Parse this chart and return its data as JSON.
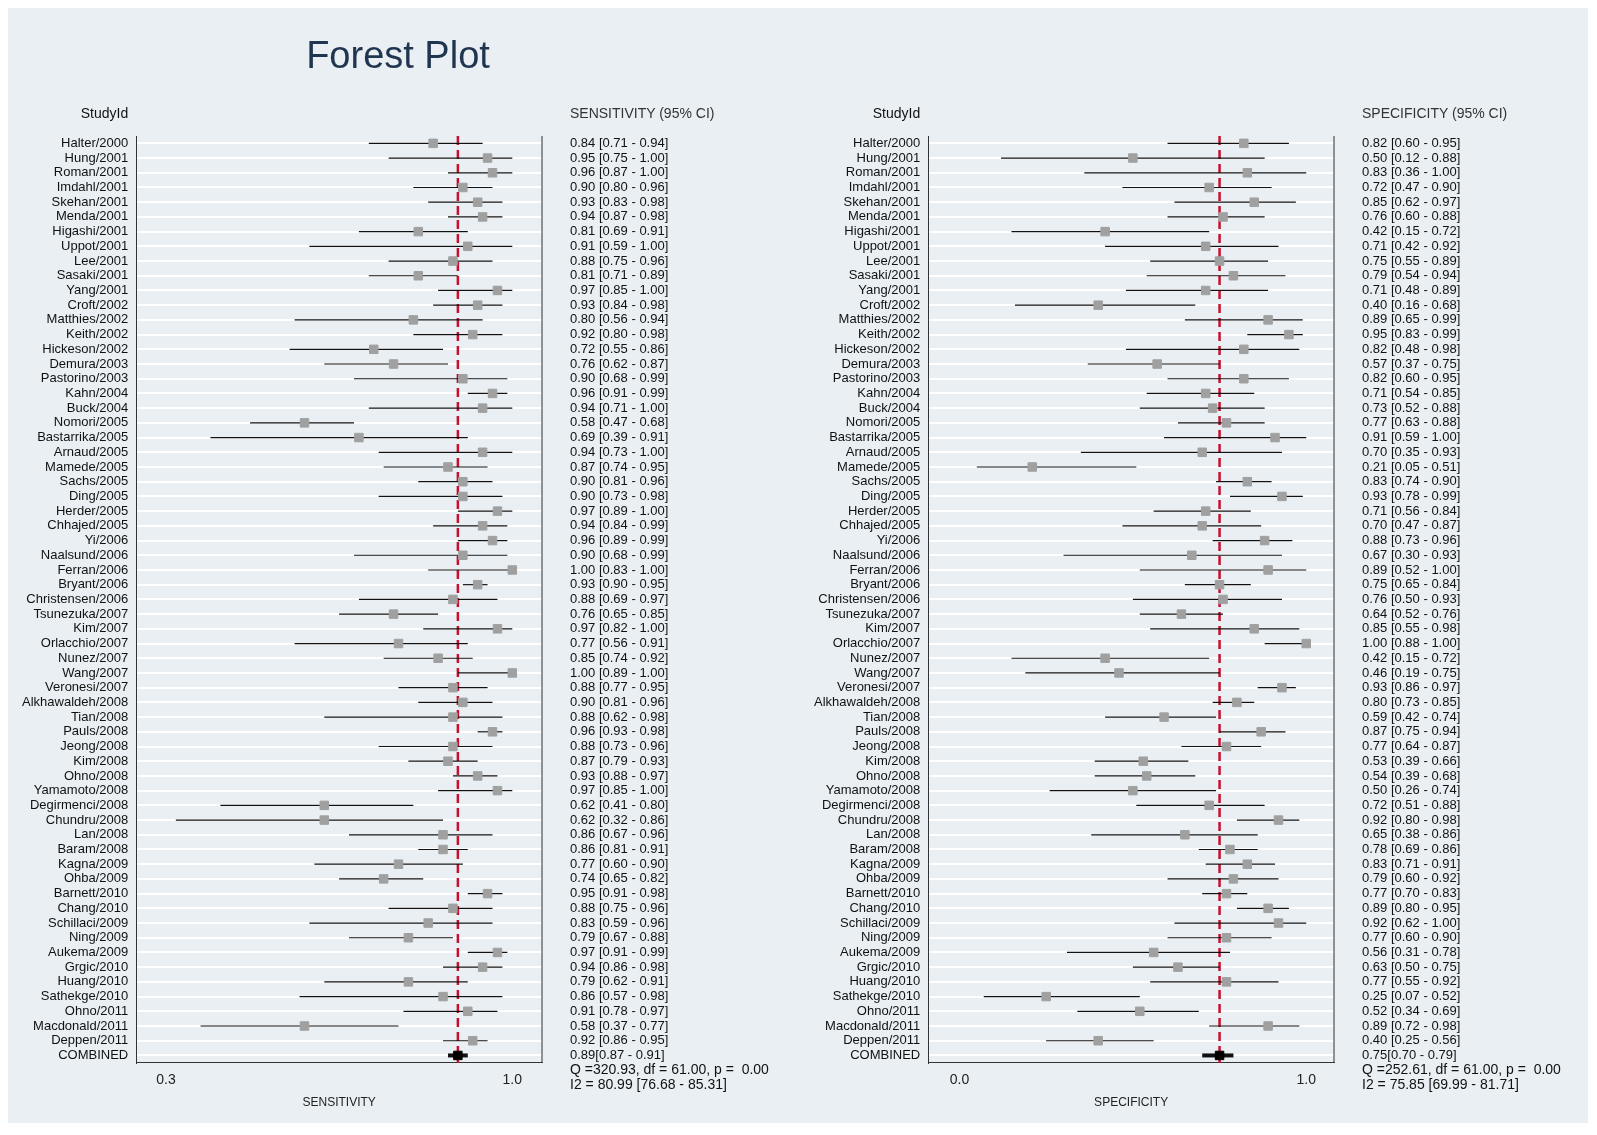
{
  "chart_data": [
    {
      "type": "scatter",
      "title": "Forest Plot",
      "orientation": "horizontal",
      "xlabel": "SENSITIVITY",
      "ylabel": "StudyId",
      "grid": "y",
      "marker": "square",
      "legend": false,
      "categories": [
        "Halter/2000",
        "Hung/2001",
        "Roman/2001",
        "Imdahl/2001",
        "Skehan/2001",
        "Menda/2001",
        "Higashi/2001",
        "Uppot/2001",
        "Lee/2001",
        "Sasaki/2001",
        "Yang/2001",
        "Croft/2002",
        "Matthies/2002",
        "Keith/2002",
        "Hickeson/2002",
        "Demura/2003",
        "Pastorino/2003",
        "Kahn/2004",
        "Buck/2004",
        "Nomori/2005",
        "Bastarrika/2005",
        "Arnaud/2005",
        "Mamede/2005",
        "Sachs/2005",
        "Ding/2005",
        "Herder/2005",
        "Chhajed/2005",
        "Yi/2006",
        "Naalsund/2006",
        "Ferran/2006",
        "Bryant/2006",
        "Christensen/2006",
        "Tsunezuka/2007",
        "Kim/2007",
        "Orlacchio/2007",
        "Nunez/2007",
        "Wang/2007",
        "Veronesi/2007",
        "Alkhawaldeh/2008",
        "Tian/2008",
        "Pauls/2008",
        "Jeong/2008",
        "Kim/2008",
        "Ohno/2008",
        "Yamamoto/2008",
        "Degirmenci/2008",
        "Chundru/2008",
        "Lan/2008",
        "Baram/2008",
        "Kagna/2009",
        "Ohba/2009",
        "Barnett/2010",
        "Chang/2010",
        "Schillaci/2009",
        "Ning/2009",
        "Aukema/2009",
        "Grgic/2010",
        "Huang/2010",
        "Sathekge/2010",
        "Ohno/2011",
        "Macdonald/2011",
        "Deppen/2011",
        "COMBINED"
      ],
      "xlim": [
        0.24,
        1.06
      ],
      "xticks": [
        {
          "value": 0.3,
          "label": "0.3"
        },
        {
          "value": 1,
          "label": "1.0"
        }
      ],
      "ref_lines": [
        {
          "axis": "x",
          "value": 0.89,
          "color": "#c8102e",
          "line_style": "dashed"
        }
      ],
      "annotations": [
        "SENSITIVITY (95% CI)",
        "Q =320.93, df = 61.00, p =  0.00",
        "I2 = 80.99 [76.68 - 85.31]"
      ],
      "series": [
        {
          "colors": [
            "#a0a0a0",
            "#a0a0a0",
            "#a0a0a0",
            "#a0a0a0",
            "#a0a0a0",
            "#a0a0a0",
            "#a0a0a0",
            "#a0a0a0",
            "#a0a0a0",
            "#a0a0a0",
            "#a0a0a0",
            "#a0a0a0",
            "#a0a0a0",
            "#a0a0a0",
            "#a0a0a0",
            "#a0a0a0",
            "#a0a0a0",
            "#a0a0a0",
            "#a0a0a0",
            "#a0a0a0",
            "#a0a0a0",
            "#a0a0a0",
            "#a0a0a0",
            "#a0a0a0",
            "#a0a0a0",
            "#a0a0a0",
            "#a0a0a0",
            "#a0a0a0",
            "#a0a0a0",
            "#a0a0a0",
            "#a0a0a0",
            "#a0a0a0",
            "#a0a0a0",
            "#a0a0a0",
            "#a0a0a0",
            "#a0a0a0",
            "#a0a0a0",
            "#a0a0a0",
            "#a0a0a0",
            "#a0a0a0",
            "#a0a0a0",
            "#a0a0a0",
            "#a0a0a0",
            "#a0a0a0",
            "#a0a0a0",
            "#a0a0a0",
            "#a0a0a0",
            "#a0a0a0",
            "#a0a0a0",
            "#a0a0a0",
            "#a0a0a0",
            "#a0a0a0",
            "#a0a0a0",
            "#a0a0a0",
            "#a0a0a0",
            "#a0a0a0",
            "#a0a0a0",
            "#a0a0a0",
            "#a0a0a0",
            "#a0a0a0",
            "#a0a0a0",
            "#a0a0a0",
            "#000000"
          ],
          "values": [
            0.84,
            0.95,
            0.96,
            0.9,
            0.93,
            0.94,
            0.81,
            0.91,
            0.88,
            0.81,
            0.97,
            0.93,
            0.8,
            0.92,
            0.72,
            0.76,
            0.9,
            0.96,
            0.94,
            0.58,
            0.69,
            0.94,
            0.87,
            0.9,
            0.9,
            0.97,
            0.94,
            0.96,
            0.9,
            1.0,
            0.93,
            0.88,
            0.76,
            0.97,
            0.77,
            0.85,
            1.0,
            0.88,
            0.9,
            0.88,
            0.96,
            0.88,
            0.87,
            0.93,
            0.97,
            0.62,
            0.62,
            0.86,
            0.86,
            0.77,
            0.74,
            0.95,
            0.88,
            0.83,
            0.79,
            0.97,
            0.94,
            0.79,
            0.86,
            0.91,
            0.58,
            0.92,
            0.89
          ],
          "errors": [
            [
              0.71,
              0.94
            ],
            [
              0.75,
              1
            ],
            [
              0.87,
              1
            ],
            [
              0.8,
              0.96
            ],
            [
              0.83,
              0.98
            ],
            [
              0.87,
              0.98
            ],
            [
              0.69,
              0.91
            ],
            [
              0.59,
              1
            ],
            [
              0.75,
              0.96
            ],
            [
              0.71,
              0.89
            ],
            [
              0.85,
              1
            ],
            [
              0.84,
              0.98
            ],
            [
              0.56,
              0.94
            ],
            [
              0.8,
              0.98
            ],
            [
              0.55,
              0.86
            ],
            [
              0.62,
              0.87
            ],
            [
              0.68,
              0.99
            ],
            [
              0.91,
              0.99
            ],
            [
              0.71,
              1
            ],
            [
              0.47,
              0.68
            ],
            [
              0.39,
              0.91
            ],
            [
              0.73,
              1
            ],
            [
              0.74,
              0.95
            ],
            [
              0.81,
              0.96
            ],
            [
              0.73,
              0.98
            ],
            [
              0.89,
              1
            ],
            [
              0.84,
              0.99
            ],
            [
              0.89,
              0.99
            ],
            [
              0.68,
              0.99
            ],
            [
              0.83,
              1
            ],
            [
              0.9,
              0.95
            ],
            [
              0.69,
              0.97
            ],
            [
              0.65,
              0.85
            ],
            [
              0.82,
              1
            ],
            [
              0.56,
              0.91
            ],
            [
              0.74,
              0.92
            ],
            [
              0.89,
              1
            ],
            [
              0.77,
              0.95
            ],
            [
              0.81,
              0.96
            ],
            [
              0.62,
              0.98
            ],
            [
              0.93,
              0.98
            ],
            [
              0.73,
              0.96
            ],
            [
              0.79,
              0.93
            ],
            [
              0.88,
              0.97
            ],
            [
              0.85,
              1
            ],
            [
              0.41,
              0.8
            ],
            [
              0.32,
              0.86
            ],
            [
              0.67,
              0.96
            ],
            [
              0.81,
              0.91
            ],
            [
              0.6,
              0.9
            ],
            [
              0.65,
              0.82
            ],
            [
              0.91,
              0.98
            ],
            [
              0.75,
              0.96
            ],
            [
              0.59,
              0.96
            ],
            [
              0.67,
              0.88
            ],
            [
              0.91,
              0.99
            ],
            [
              0.86,
              0.98
            ],
            [
              0.62,
              0.91
            ],
            [
              0.57,
              0.98
            ],
            [
              0.78,
              0.97
            ],
            [
              0.37,
              0.77
            ],
            [
              0.86,
              0.95
            ],
            [
              0.87,
              0.91
            ]
          ],
          "value_labels": [
            "0.84 [0.71 - 0.94]",
            "0.95 [0.75 - 1.00]",
            "0.96 [0.87 - 1.00]",
            "0.90 [0.80 - 0.96]",
            "0.93 [0.83 - 0.98]",
            "0.94 [0.87 - 0.98]",
            "0.81 [0.69 - 0.91]",
            "0.91 [0.59 - 1.00]",
            "0.88 [0.75 - 0.96]",
            "0.81 [0.71 - 0.89]",
            "0.97 [0.85 - 1.00]",
            "0.93 [0.84 - 0.98]",
            "0.80 [0.56 - 0.94]",
            "0.92 [0.80 - 0.98]",
            "0.72 [0.55 - 0.86]",
            "0.76 [0.62 - 0.87]",
            "0.90 [0.68 - 0.99]",
            "0.96 [0.91 - 0.99]",
            "0.94 [0.71 - 1.00]",
            "0.58 [0.47 - 0.68]",
            "0.69 [0.39 - 0.91]",
            "0.94 [0.73 - 1.00]",
            "0.87 [0.74 - 0.95]",
            "0.90 [0.81 - 0.96]",
            "0.90 [0.73 - 0.98]",
            "0.97 [0.89 - 1.00]",
            "0.94 [0.84 - 0.99]",
            "0.96 [0.89 - 0.99]",
            "0.90 [0.68 - 0.99]",
            "1.00 [0.83 - 1.00]",
            "0.93 [0.90 - 0.95]",
            "0.88 [0.69 - 0.97]",
            "0.76 [0.65 - 0.85]",
            "0.97 [0.82 - 1.00]",
            "0.77 [0.56 - 0.91]",
            "0.85 [0.74 - 0.92]",
            "1.00 [0.89 - 1.00]",
            "0.88 [0.77 - 0.95]",
            "0.90 [0.81 - 0.96]",
            "0.88 [0.62 - 0.98]",
            "0.96 [0.93 - 0.98]",
            "0.88 [0.73 - 0.96]",
            "0.87 [0.79 - 0.93]",
            "0.93 [0.88 - 0.97]",
            "0.97 [0.85 - 1.00]",
            "0.62 [0.41 - 0.80]",
            "0.62 [0.32 - 0.86]",
            "0.86 [0.67 - 0.96]",
            "0.86 [0.81 - 0.91]",
            "0.77 [0.60 - 0.90]",
            "0.74 [0.65 - 0.82]",
            "0.95 [0.91 - 0.98]",
            "0.88 [0.75 - 0.96]",
            "0.83 [0.59 - 0.96]",
            "0.79 [0.67 - 0.88]",
            "0.97 [0.91 - 0.99]",
            "0.94 [0.86 - 0.98]",
            "0.79 [0.62 - 0.91]",
            "0.86 [0.57 - 0.98]",
            "0.91 [0.78 - 0.97]",
            "0.58 [0.37 - 0.77]",
            "0.92 [0.86 - 0.95]",
            "0.89[0.87 - 0.91]"
          ]
        }
      ]
    },
    {
      "type": "scatter",
      "orientation": "horizontal",
      "xlabel": "SPECIFICITY",
      "ylabel": "StudyId",
      "grid": "y",
      "marker": "square",
      "legend": false,
      "categories": [
        "Halter/2000",
        "Hung/2001",
        "Roman/2001",
        "Imdahl/2001",
        "Skehan/2001",
        "Menda/2001",
        "Higashi/2001",
        "Uppot/2001",
        "Lee/2001",
        "Sasaki/2001",
        "Yang/2001",
        "Croft/2002",
        "Matthies/2002",
        "Keith/2002",
        "Hickeson/2002",
        "Demura/2003",
        "Pastorino/2003",
        "Kahn/2004",
        "Buck/2004",
        "Nomori/2005",
        "Bastarrika/2005",
        "Arnaud/2005",
        "Mamede/2005",
        "Sachs/2005",
        "Ding/2005",
        "Herder/2005",
        "Chhajed/2005",
        "Yi/2006",
        "Naalsund/2006",
        "Ferran/2006",
        "Bryant/2006",
        "Christensen/2006",
        "Tsunezuka/2007",
        "Kim/2007",
        "Orlacchio/2007",
        "Nunez/2007",
        "Wang/2007",
        "Veronesi/2007",
        "Alkhawaldeh/2008",
        "Tian/2008",
        "Pauls/2008",
        "Jeong/2008",
        "Kim/2008",
        "Ohno/2008",
        "Yamamoto/2008",
        "Degirmenci/2008",
        "Chundru/2008",
        "Lan/2008",
        "Baram/2008",
        "Kagna/2009",
        "Ohba/2009",
        "Barnett/2010",
        "Chang/2010",
        "Schillaci/2009",
        "Ning/2009",
        "Aukema/2009",
        "Grgic/2010",
        "Huang/2010",
        "Sathekge/2010",
        "Ohno/2011",
        "Macdonald/2011",
        "Deppen/2011",
        "COMBINED"
      ],
      "xlim": [
        -0.09,
        1.08
      ],
      "xticks": [
        {
          "value": 0,
          "label": "0.0"
        },
        {
          "value": 1,
          "label": "1.0"
        }
      ],
      "ref_lines": [
        {
          "axis": "x",
          "value": 0.75,
          "color": "#c8102e",
          "line_style": "dashed"
        }
      ],
      "annotations": [
        "SPECIFICITY (95% CI)",
        "Q =252.61, df = 61.00, p =  0.00",
        "I2 = 75.85 [69.99 - 81.71]"
      ],
      "series": [
        {
          "colors": [
            "#a0a0a0",
            "#a0a0a0",
            "#a0a0a0",
            "#a0a0a0",
            "#a0a0a0",
            "#a0a0a0",
            "#a0a0a0",
            "#a0a0a0",
            "#a0a0a0",
            "#a0a0a0",
            "#a0a0a0",
            "#a0a0a0",
            "#a0a0a0",
            "#a0a0a0",
            "#a0a0a0",
            "#a0a0a0",
            "#a0a0a0",
            "#a0a0a0",
            "#a0a0a0",
            "#a0a0a0",
            "#a0a0a0",
            "#a0a0a0",
            "#a0a0a0",
            "#a0a0a0",
            "#a0a0a0",
            "#a0a0a0",
            "#a0a0a0",
            "#a0a0a0",
            "#a0a0a0",
            "#a0a0a0",
            "#a0a0a0",
            "#a0a0a0",
            "#a0a0a0",
            "#a0a0a0",
            "#a0a0a0",
            "#a0a0a0",
            "#a0a0a0",
            "#a0a0a0",
            "#a0a0a0",
            "#a0a0a0",
            "#a0a0a0",
            "#a0a0a0",
            "#a0a0a0",
            "#a0a0a0",
            "#a0a0a0",
            "#a0a0a0",
            "#a0a0a0",
            "#a0a0a0",
            "#a0a0a0",
            "#a0a0a0",
            "#a0a0a0",
            "#a0a0a0",
            "#a0a0a0",
            "#a0a0a0",
            "#a0a0a0",
            "#a0a0a0",
            "#a0a0a0",
            "#a0a0a0",
            "#a0a0a0",
            "#a0a0a0",
            "#a0a0a0",
            "#a0a0a0",
            "#000000"
          ],
          "values": [
            0.82,
            0.5,
            0.83,
            0.72,
            0.85,
            0.76,
            0.42,
            0.71,
            0.75,
            0.79,
            0.71,
            0.4,
            0.89,
            0.95,
            0.82,
            0.57,
            0.82,
            0.71,
            0.73,
            0.77,
            0.91,
            0.7,
            0.21,
            0.83,
            0.93,
            0.71,
            0.7,
            0.88,
            0.67,
            0.89,
            0.75,
            0.76,
            0.64,
            0.85,
            1.0,
            0.42,
            0.46,
            0.93,
            0.8,
            0.59,
            0.87,
            0.77,
            0.53,
            0.54,
            0.5,
            0.72,
            0.92,
            0.65,
            0.78,
            0.83,
            0.79,
            0.77,
            0.89,
            0.92,
            0.77,
            0.56,
            0.63,
            0.77,
            0.25,
            0.52,
            0.89,
            0.4,
            0.75
          ],
          "errors": [
            [
              0.6,
              0.95
            ],
            [
              0.12,
              0.88
            ],
            [
              0.36,
              1
            ],
            [
              0.47,
              0.9
            ],
            [
              0.62,
              0.97
            ],
            [
              0.6,
              0.88
            ],
            [
              0.15,
              0.72
            ],
            [
              0.42,
              0.92
            ],
            [
              0.55,
              0.89
            ],
            [
              0.54,
              0.94
            ],
            [
              0.48,
              0.89
            ],
            [
              0.16,
              0.68
            ],
            [
              0.65,
              0.99
            ],
            [
              0.83,
              0.99
            ],
            [
              0.48,
              0.98
            ],
            [
              0.37,
              0.75
            ],
            [
              0.6,
              0.95
            ],
            [
              0.54,
              0.85
            ],
            [
              0.52,
              0.88
            ],
            [
              0.63,
              0.88
            ],
            [
              0.59,
              1
            ],
            [
              0.35,
              0.93
            ],
            [
              0.05,
              0.51
            ],
            [
              0.74,
              0.9
            ],
            [
              0.78,
              0.99
            ],
            [
              0.56,
              0.84
            ],
            [
              0.47,
              0.87
            ],
            [
              0.73,
              0.96
            ],
            [
              0.3,
              0.93
            ],
            [
              0.52,
              1
            ],
            [
              0.65,
              0.84
            ],
            [
              0.5,
              0.93
            ],
            [
              0.52,
              0.76
            ],
            [
              0.55,
              0.98
            ],
            [
              0.88,
              1
            ],
            [
              0.15,
              0.72
            ],
            [
              0.19,
              0.75
            ],
            [
              0.86,
              0.97
            ],
            [
              0.73,
              0.85
            ],
            [
              0.42,
              0.74
            ],
            [
              0.75,
              0.94
            ],
            [
              0.64,
              0.87
            ],
            [
              0.39,
              0.66
            ],
            [
              0.39,
              0.68
            ],
            [
              0.26,
              0.74
            ],
            [
              0.51,
              0.88
            ],
            [
              0.8,
              0.98
            ],
            [
              0.38,
              0.86
            ],
            [
              0.69,
              0.86
            ],
            [
              0.71,
              0.91
            ],
            [
              0.6,
              0.92
            ],
            [
              0.7,
              0.83
            ],
            [
              0.8,
              0.95
            ],
            [
              0.62,
              1
            ],
            [
              0.6,
              0.9
            ],
            [
              0.31,
              0.78
            ],
            [
              0.5,
              0.75
            ],
            [
              0.55,
              0.92
            ],
            [
              0.07,
              0.52
            ],
            [
              0.34,
              0.69
            ],
            [
              0.72,
              0.98
            ],
            [
              0.25,
              0.56
            ],
            [
              0.7,
              0.79
            ]
          ],
          "value_labels": [
            "0.82 [0.60 - 0.95]",
            "0.50 [0.12 - 0.88]",
            "0.83 [0.36 - 1.00]",
            "0.72 [0.47 - 0.90]",
            "0.85 [0.62 - 0.97]",
            "0.76 [0.60 - 0.88]",
            "0.42 [0.15 - 0.72]",
            "0.71 [0.42 - 0.92]",
            "0.75 [0.55 - 0.89]",
            "0.79 [0.54 - 0.94]",
            "0.71 [0.48 - 0.89]",
            "0.40 [0.16 - 0.68]",
            "0.89 [0.65 - 0.99]",
            "0.95 [0.83 - 0.99]",
            "0.82 [0.48 - 0.98]",
            "0.57 [0.37 - 0.75]",
            "0.82 [0.60 - 0.95]",
            "0.71 [0.54 - 0.85]",
            "0.73 [0.52 - 0.88]",
            "0.77 [0.63 - 0.88]",
            "0.91 [0.59 - 1.00]",
            "0.70 [0.35 - 0.93]",
            "0.21 [0.05 - 0.51]",
            "0.83 [0.74 - 0.90]",
            "0.93 [0.78 - 0.99]",
            "0.71 [0.56 - 0.84]",
            "0.70 [0.47 - 0.87]",
            "0.88 [0.73 - 0.96]",
            "0.67 [0.30 - 0.93]",
            "0.89 [0.52 - 1.00]",
            "0.75 [0.65 - 0.84]",
            "0.76 [0.50 - 0.93]",
            "0.64 [0.52 - 0.76]",
            "0.85 [0.55 - 0.98]",
            "1.00 [0.88 - 1.00]",
            "0.42 [0.15 - 0.72]",
            "0.46 [0.19 - 0.75]",
            "0.93 [0.86 - 0.97]",
            "0.80 [0.73 - 0.85]",
            "0.59 [0.42 - 0.74]",
            "0.87 [0.75 - 0.94]",
            "0.77 [0.64 - 0.87]",
            "0.53 [0.39 - 0.66]",
            "0.54 [0.39 - 0.68]",
            "0.50 [0.26 - 0.74]",
            "0.72 [0.51 - 0.88]",
            "0.92 [0.80 - 0.98]",
            "0.65 [0.38 - 0.86]",
            "0.78 [0.69 - 0.86]",
            "0.83 [0.71 - 0.91]",
            "0.79 [0.60 - 0.92]",
            "0.77 [0.70 - 0.83]",
            "0.89 [0.80 - 0.95]",
            "0.92 [0.62 - 1.00]",
            "0.77 [0.60 - 0.90]",
            "0.56 [0.31 - 0.78]",
            "0.63 [0.50 - 0.75]",
            "0.77 [0.55 - 0.92]",
            "0.25 [0.07 - 0.52]",
            "0.52 [0.34 - 0.69]",
            "0.89 [0.72 - 0.98]",
            "0.40 [0.25 - 0.56]",
            "0.75[0.70 - 0.79]"
          ]
        }
      ]
    }
  ]
}
